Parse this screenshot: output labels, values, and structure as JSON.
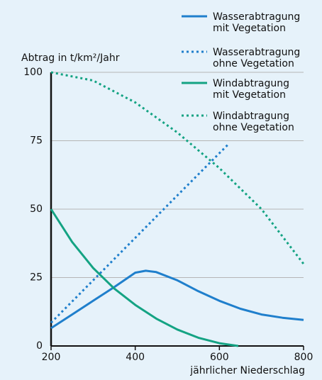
{
  "chart_data": {
    "type": "line",
    "ylabel": "Abtrag in t/km²/Jahr",
    "xlabel": "jährlicher Niederschlag",
    "xlim": [
      200,
      800
    ],
    "xticks": [
      200,
      400,
      600,
      800
    ],
    "ylim": [
      0,
      100
    ],
    "yticks": [
      0,
      25,
      50,
      75,
      100
    ],
    "grid": true,
    "series": [
      {
        "name": "Wasserabtragung mit Vegetation",
        "color": "#1f7fcc",
        "dashed": false,
        "x": [
          200,
          250,
          300,
          350,
          400,
          425,
          450,
          500,
          550,
          600,
          650,
          700,
          750,
          800
        ],
        "values": [
          6.5,
          11.5,
          16.5,
          21.5,
          26.8,
          27.5,
          27,
          24,
          20,
          16.5,
          13.6,
          11.5,
          10.3,
          9.5
        ]
      },
      {
        "name": "Wasserabtragung ohne Vegetation",
        "color": "#1f7fcc",
        "dashed": true,
        "x": [
          200,
          300,
          400,
          500,
          623
        ],
        "values": [
          8.5,
          24,
          39.5,
          55,
          74
        ]
      },
      {
        "name": "Windabtragung mit Vegetation",
        "color": "#14a383",
        "dashed": false,
        "x": [
          200,
          250,
          300,
          350,
          400,
          450,
          500,
          550,
          600,
          645
        ],
        "values": [
          50,
          38,
          28.5,
          21,
          15,
          10,
          6,
          3,
          1,
          0
        ]
      },
      {
        "name": "Windabtragung ohne Vegetation",
        "color": "#14a383",
        "dashed": true,
        "x": [
          200,
          300,
          400,
          500,
          600,
          700,
          800
        ],
        "values": [
          100,
          97,
          89,
          78,
          65,
          50,
          30
        ]
      }
    ]
  }
}
